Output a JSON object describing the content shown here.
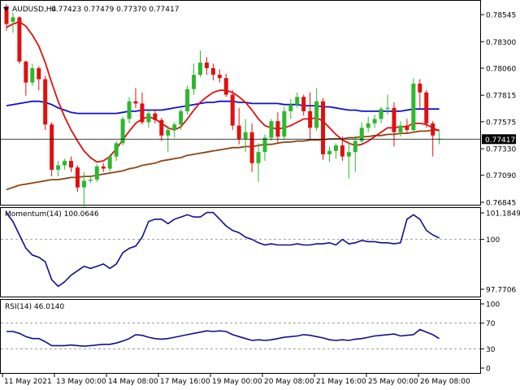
{
  "header": {
    "symbol": "AUDUSD,H4",
    "ohlc": "0.77423 0.77479 0.77370 0.77417"
  },
  "price_axis": {
    "ticks": [
      "0.78545",
      "0.78300",
      "0.78060",
      "0.77815",
      "0.77575",
      "0.77330",
      "0.77090",
      "0.76845"
    ],
    "current_price_label": "0.77417"
  },
  "momentum_panel": {
    "title": "Momentum(14) 100.0646",
    "ticks": [
      "101.1849",
      "100",
      "97.7706"
    ]
  },
  "rsi_panel": {
    "title": "RSI(14) 46.0140",
    "ticks": [
      "100",
      "70",
      "30",
      "0"
    ]
  },
  "time_axis": {
    "labels": [
      "11 May 2021",
      "13 May 00:00",
      "14 May 08:00",
      "17 May 16:00",
      "19 May 00:00",
      "20 May 08:00",
      "21 May 16:00",
      "25 May 00:00",
      "26 May 08:00"
    ]
  },
  "colors": {
    "bull": "#2db82d",
    "bear": "#e01010",
    "ma_fast": "#e01010",
    "ma_mid": "#1010d0",
    "ma_slow": "#8b4513",
    "indicator": "#10108b",
    "current_price_bg": "#000000"
  },
  "chart_data": [
    {
      "type": "candlestick",
      "series": [
        {
          "name": "candles",
          "values": [
            [
              0.7862,
              0.7864,
              0.784,
              0.7846
            ],
            [
              0.7848,
              0.7856,
              0.7838,
              0.7852
            ],
            [
              0.7852,
              0.7853,
              0.781,
              0.7812
            ],
            [
              0.7812,
              0.7813,
              0.7781,
              0.7793
            ],
            [
              0.7793,
              0.781,
              0.779,
              0.7806
            ],
            [
              0.7806,
              0.7808,
              0.7786,
              0.7796
            ],
            [
              0.7796,
              0.7799,
              0.775,
              0.7755
            ],
            [
              0.7755,
              0.7757,
              0.7708,
              0.7714
            ],
            [
              0.7714,
              0.7722,
              0.7708,
              0.7718
            ],
            [
              0.7718,
              0.7724,
              0.7714,
              0.7722
            ],
            [
              0.7722,
              0.7726,
              0.7712,
              0.7716
            ],
            [
              0.7716,
              0.7718,
              0.7694,
              0.7698
            ],
            [
              0.7698,
              0.7712,
              0.768,
              0.7704
            ],
            [
              0.7704,
              0.7708,
              0.7702,
              0.7705
            ],
            [
              0.7705,
              0.7719,
              0.7703,
              0.7717
            ],
            [
              0.7717,
              0.772,
              0.7712,
              0.7715
            ],
            [
              0.7715,
              0.7728,
              0.7712,
              0.7726
            ],
            [
              0.7726,
              0.774,
              0.7722,
              0.7738
            ],
            [
              0.7738,
              0.7762,
              0.7736,
              0.776
            ],
            [
              0.776,
              0.778,
              0.7756,
              0.7776
            ],
            [
              0.7776,
              0.7788,
              0.777,
              0.7774
            ],
            [
              0.7774,
              0.7784,
              0.7755,
              0.7757
            ],
            [
              0.7757,
              0.7768,
              0.7752,
              0.7765
            ],
            [
              0.7765,
              0.7768,
              0.7756,
              0.7759
            ],
            [
              0.7759,
              0.7761,
              0.774,
              0.7745
            ],
            [
              0.7745,
              0.7754,
              0.773,
              0.775
            ],
            [
              0.775,
              0.7757,
              0.7743,
              0.7755
            ],
            [
              0.7755,
              0.7769,
              0.775,
              0.7767
            ],
            [
              0.7767,
              0.779,
              0.7764,
              0.7787
            ],
            [
              0.7787,
              0.781,
              0.7782,
              0.78
            ],
            [
              0.78,
              0.7822,
              0.7798,
              0.7811
            ],
            [
              0.7811,
              0.7816,
              0.78,
              0.7806
            ],
            [
              0.7806,
              0.781,
              0.7795,
              0.78
            ],
            [
              0.78,
              0.7805,
              0.7793,
              0.7797
            ],
            [
              0.7797,
              0.7801,
              0.778,
              0.7782
            ],
            [
              0.7782,
              0.7786,
              0.775,
              0.7754
            ],
            [
              0.7754,
              0.777,
              0.7737,
              0.7742
            ],
            [
              0.7742,
              0.776,
              0.773,
              0.7748
            ],
            [
              0.7748,
              0.7756,
              0.7712,
              0.772
            ],
            [
              0.772,
              0.7738,
              0.7703,
              0.773
            ],
            [
              0.773,
              0.7746,
              0.7722,
              0.7743
            ],
            [
              0.7743,
              0.776,
              0.774,
              0.7758
            ],
            [
              0.7758,
              0.7766,
              0.7738,
              0.7744
            ],
            [
              0.7744,
              0.7771,
              0.7741,
              0.7767
            ],
            [
              0.7767,
              0.7778,
              0.776,
              0.7773
            ],
            [
              0.7773,
              0.7784,
              0.777,
              0.778
            ],
            [
              0.778,
              0.7782,
              0.7763,
              0.7767
            ],
            [
              0.7767,
              0.7784,
              0.7742,
              0.7752
            ],
            [
              0.7752,
              0.7788,
              0.7749,
              0.7776
            ],
            [
              0.7776,
              0.7779,
              0.7723,
              0.7728
            ],
            [
              0.7728,
              0.7735,
              0.7721,
              0.7731
            ],
            [
              0.7731,
              0.7738,
              0.7724,
              0.7736
            ],
            [
              0.7736,
              0.7744,
              0.7722,
              0.7726
            ],
            [
              0.7726,
              0.774,
              0.7706,
              0.773
            ],
            [
              0.773,
              0.7745,
              0.7712,
              0.774
            ],
            [
              0.774,
              0.7757,
              0.7736,
              0.7752
            ],
            [
              0.7752,
              0.7762,
              0.7748,
              0.7756
            ],
            [
              0.7756,
              0.7764,
              0.7752,
              0.776
            ],
            [
              0.776,
              0.7771,
              0.7756,
              0.7769
            ],
            [
              0.7769,
              0.7782,
              0.7764,
              0.777
            ],
            [
              0.777,
              0.7775,
              0.7735,
              0.7748
            ],
            [
              0.7748,
              0.7758,
              0.7744,
              0.7754
            ],
            [
              0.7754,
              0.776,
              0.7747,
              0.775
            ],
            [
              0.775,
              0.7797,
              0.7748,
              0.7792
            ],
            [
              0.7792,
              0.7796,
              0.777,
              0.7784
            ],
            [
              0.7784,
              0.7786,
              0.7752,
              0.7756
            ],
            [
              0.7756,
              0.7758,
              0.7726,
              0.7745
            ],
            [
              0.7742,
              0.7748,
              0.7737,
              0.7742
            ]
          ]
        },
        {
          "name": "ma_fast",
          "values": [
            0.7843,
            0.7846,
            0.7848,
            0.7844,
            0.7836,
            0.7826,
            0.7811,
            0.7793,
            0.7776,
            0.7762,
            0.775,
            0.774,
            0.7731,
            0.7725,
            0.7721,
            0.7722,
            0.7726,
            0.7733,
            0.7741,
            0.7749,
            0.7756,
            0.776,
            0.7762,
            0.776,
            0.7756,
            0.7752,
            0.775,
            0.7753,
            0.776,
            0.7768,
            0.7775,
            0.778,
            0.7784,
            0.7786,
            0.7786,
            0.7784,
            0.778,
            0.7775,
            0.7768,
            0.776,
            0.7754,
            0.7752,
            0.7751,
            0.7752,
            0.7754,
            0.7757,
            0.776,
            0.776,
            0.7761,
            0.7758,
            0.7752,
            0.7746,
            0.7741,
            0.7738,
            0.7736,
            0.7737,
            0.774,
            0.7744,
            0.7748,
            0.7752,
            0.7752,
            0.7753,
            0.7753,
            0.7756,
            0.7756,
            0.7755,
            0.7752,
            0.7749
          ]
        },
        {
          "name": "ma_mid",
          "values": [
            0.7772,
            0.7773,
            0.7774,
            0.7775,
            0.7776,
            0.7776,
            0.7775,
            0.7773,
            0.777,
            0.7768,
            0.7766,
            0.7765,
            0.7765,
            0.7765,
            0.7765,
            0.7765,
            0.7765,
            0.7765,
            0.7766,
            0.7767,
            0.7767,
            0.7768,
            0.7768,
            0.7768,
            0.7768,
            0.7769,
            0.777,
            0.7771,
            0.7772,
            0.7773,
            0.7774,
            0.7775,
            0.7775,
            0.7776,
            0.7776,
            0.7776,
            0.7775,
            0.7775,
            0.7774,
            0.7774,
            0.7774,
            0.7774,
            0.7774,
            0.7773,
            0.7773,
            0.7773,
            0.7772,
            0.7772,
            0.7772,
            0.7771,
            0.7771,
            0.777,
            0.7769,
            0.7768,
            0.7768,
            0.7767,
            0.7767,
            0.7767,
            0.7767,
            0.7767,
            0.7767,
            0.7767,
            0.7768,
            0.7769,
            0.7769,
            0.7769,
            0.7769,
            0.7769
          ]
        },
        {
          "name": "ma_slow",
          "values": [
            0.7696,
            0.7698,
            0.77,
            0.7701,
            0.7702,
            0.7703,
            0.7704,
            0.7705,
            0.7705,
            0.7706,
            0.7707,
            0.7707,
            0.7708,
            0.7708,
            0.7709,
            0.771,
            0.7711,
            0.7712,
            0.7713,
            0.7715,
            0.7716,
            0.7718,
            0.7719,
            0.772,
            0.7722,
            0.7723,
            0.7724,
            0.7725,
            0.7727,
            0.7728,
            0.7729,
            0.773,
            0.7731,
            0.7732,
            0.7733,
            0.7734,
            0.7734,
            0.7735,
            0.7735,
            0.7736,
            0.7737,
            0.7737,
            0.7738,
            0.7739,
            0.7739,
            0.774,
            0.774,
            0.7741,
            0.7741,
            0.7741,
            0.7742,
            0.7742,
            0.7742,
            0.7743,
            0.7743,
            0.7744,
            0.7744,
            0.7745,
            0.7745,
            0.7746,
            0.7746,
            0.7747,
            0.7747,
            0.7748,
            0.7749,
            0.7749,
            0.775,
            0.775
          ]
        }
      ],
      "ylim": [
        0.768,
        0.7862
      ],
      "grid": false
    },
    {
      "type": "line",
      "series": [
        {
          "name": "Momentum(14)",
          "values": [
            101.18,
            100.8,
            100.2,
            99.6,
            99.3,
            99.2,
            99.0,
            98.2,
            97.9,
            98.1,
            98.4,
            98.6,
            98.8,
            98.7,
            98.8,
            98.9,
            98.7,
            98.9,
            99.4,
            99.6,
            99.7,
            100.1,
            100.8,
            100.9,
            100.9,
            100.7,
            100.9,
            101.0,
            101.1,
            101.0,
            101.0,
            101.2,
            101.2,
            100.9,
            100.6,
            100.4,
            100.3,
            100.1,
            100.0,
            99.85,
            99.75,
            99.8,
            99.75,
            99.75,
            99.75,
            99.8,
            99.75,
            99.75,
            99.8,
            99.8,
            99.85,
            99.75,
            100.0,
            99.8,
            99.85,
            99.95,
            99.9,
            99.9,
            99.85,
            99.85,
            99.8,
            99.85,
            100.9,
            101.1,
            100.9,
            100.4,
            100.2,
            100.06
          ]
        }
      ],
      "ylim": [
        97.7706,
        101.1849
      ],
      "reference_line": 100
    },
    {
      "type": "line",
      "series": [
        {
          "name": "RSI(14)",
          "values": [
            57,
            57,
            54,
            49,
            46,
            46,
            41,
            35,
            35,
            35,
            36,
            35,
            34,
            35,
            36,
            37,
            37,
            39,
            42,
            46,
            52,
            51,
            48,
            46,
            45,
            46,
            48,
            50,
            52,
            54,
            56,
            58,
            57,
            58,
            57,
            52,
            49,
            46,
            43,
            44,
            43,
            44,
            46,
            48,
            49,
            50,
            52,
            51,
            49,
            47,
            44,
            43,
            44,
            43,
            45,
            46,
            48,
            50,
            51,
            52,
            53,
            50,
            51,
            52,
            60,
            56,
            52,
            46
          ]
        }
      ],
      "ylim": [
        0,
        100
      ],
      "reference_lines": [
        70,
        30
      ]
    }
  ]
}
